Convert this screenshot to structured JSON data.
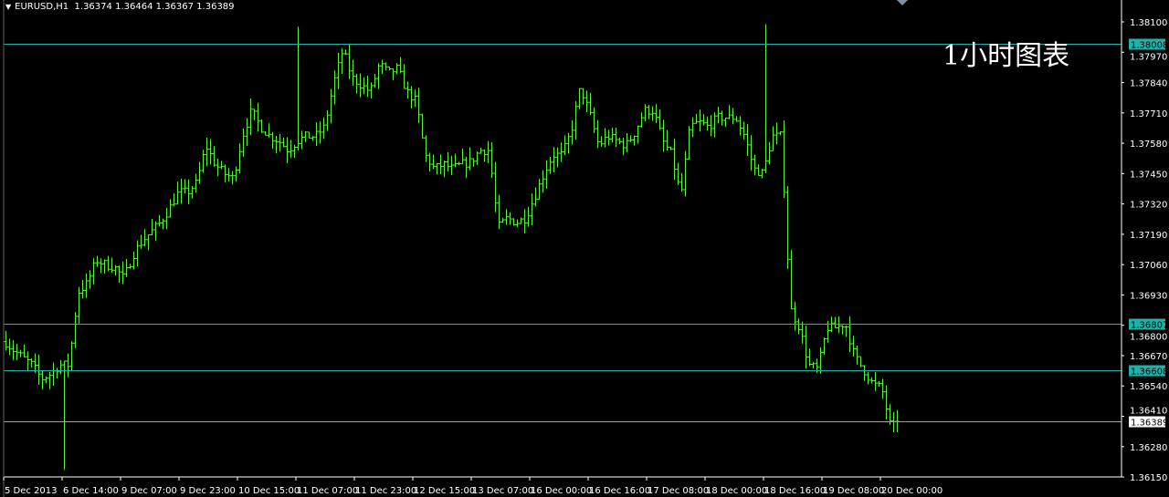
{
  "header": {
    "symbol": "EURUSD,H1",
    "open": "1.36374",
    "high": "1.36464",
    "low": "1.36367",
    "close": "1.36389"
  },
  "watermark": "1小时图表",
  "colors": {
    "background": "#000000",
    "bars": "#5cf03a",
    "level_lines": "#20b2aa",
    "bid_line": "#a0a0a0",
    "axis": "#ffffff"
  },
  "chart_data": {
    "type": "ohlc",
    "title": "",
    "y_ticks": [
      "1.38100",
      "1.37970",
      "1.37840",
      "1.37710",
      "1.37580",
      "1.37450",
      "1.37320",
      "1.37190",
      "1.37060",
      "1.36930",
      "1.36800",
      "1.36670",
      "1.36540",
      "1.36410",
      "1.36280",
      "1.36150"
    ],
    "ylim": [
      1.3611,
      1.3818
    ],
    "x_ticks": [
      "5 Dec 2013",
      "6 Dec 14:00",
      "9 Dec 07:00",
      "9 Dec 23:00",
      "10 Dec 15:00",
      "11 Dec 07:00",
      "11 Dec 23:00",
      "12 Dec 15:00",
      "13 Dec 07:00",
      "16 Dec 00:00",
      "16 Dec 16:00",
      "17 Dec 08:00",
      "18 Dec 00:00",
      "18 Dec 16:00",
      "19 Dec 08:00",
      "20 Dec 00:00"
    ],
    "close_samples": [
      1.3673,
      1.3669,
      1.3666,
      1.3663,
      1.3657,
      1.3659,
      1.3663,
      1.3663,
      1.3694,
      1.3698,
      1.3708,
      1.3706,
      1.3705,
      1.37,
      1.371,
      1.3716,
      1.372,
      1.3724,
      1.373,
      1.3737,
      1.3737,
      1.3741,
      1.3757,
      1.3749,
      1.3745,
      1.3743,
      1.3761,
      1.3772,
      1.3765,
      1.3761,
      1.3759,
      1.3755,
      1.3759,
      1.3761,
      1.3761,
      1.3765,
      1.3784,
      1.3798,
      1.3786,
      1.3783,
      1.378,
      1.3792,
      1.3788,
      1.379,
      1.378,
      1.3776,
      1.3753,
      1.3747,
      1.3749,
      1.3747,
      1.3749,
      1.375,
      1.3755,
      1.3755,
      1.3722,
      1.3726,
      1.3724,
      1.3726,
      1.3735,
      1.3745,
      1.3753,
      1.3753,
      1.3763,
      1.3782,
      1.3771,
      1.3757,
      1.3761,
      1.3759,
      1.3757,
      1.3763,
      1.3772,
      1.3772,
      1.3759,
      1.3753,
      1.3735,
      1.3765,
      1.3767,
      1.3765,
      1.3769,
      1.3769,
      1.3769,
      1.3761,
      1.3747,
      1.3745,
      1.3761,
      1.3761,
      1.3687,
      1.3679,
      1.3663,
      1.3661,
      1.3679,
      1.3679,
      1.3681,
      1.3667,
      1.3661,
      1.3655,
      1.3653,
      1.3636,
      1.3639
    ],
    "extremes": [
      {
        "near": "6 Dec 14:00",
        "low": 1.3618
      },
      {
        "near": "11 Dec 07:00",
        "high": 1.3808
      },
      {
        "near": "18 Dec 16:00",
        "high": 1.3809
      }
    ],
    "levels": [
      {
        "price": "1.38008",
        "kind": "level"
      },
      {
        "price": "1.36807",
        "kind": "level"
      },
      {
        "price": "1.36608",
        "kind": "level"
      },
      {
        "price": "1.36389",
        "kind": "bid"
      }
    ]
  }
}
